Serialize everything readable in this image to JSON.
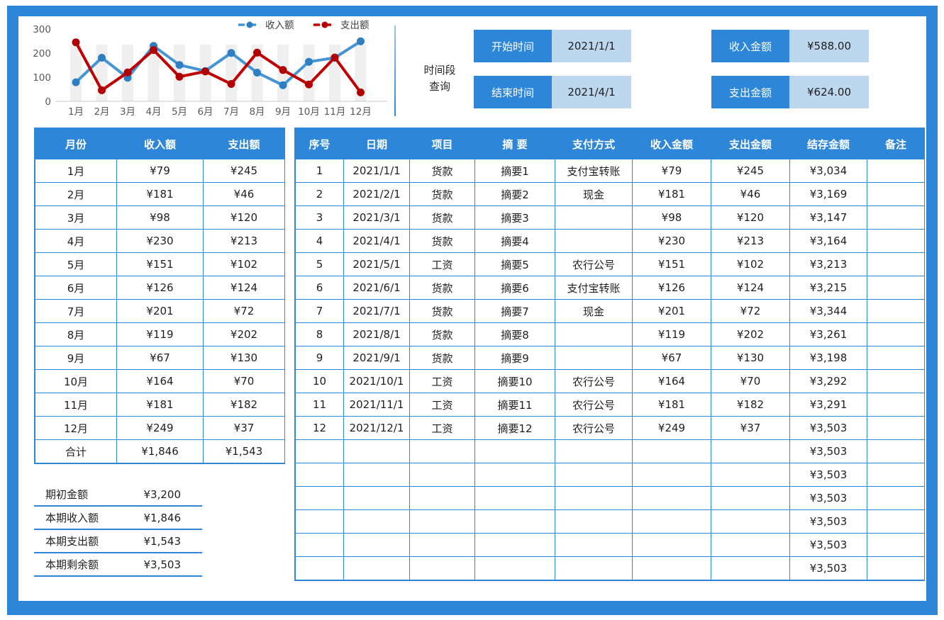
{
  "colors": {
    "accent_blue": "#2e86d9",
    "light_blue": "#bdd7ee",
    "income_line": "#4495d5",
    "expense_line": "#c00000",
    "stripe_gray": "#efefef",
    "axis_text": "#595959"
  },
  "chart_data": {
    "type": "line",
    "categories": [
      "1月",
      "2月",
      "3月",
      "4月",
      "5月",
      "6月",
      "7月",
      "8月",
      "9月",
      "10月",
      "11月",
      "12月"
    ],
    "series": [
      {
        "name": "收入额",
        "color": "#4495d5",
        "marker_color": "#2e7fc2",
        "values": [
          79,
          181,
          98,
          230,
          151,
          126,
          201,
          119,
          67,
          164,
          181,
          249
        ]
      },
      {
        "name": "支出额",
        "color": "#c00000",
        "marker_color": "#b00000",
        "values": [
          245,
          46,
          120,
          213,
          102,
          124,
          72,
          202,
          130,
          70,
          182,
          37
        ]
      }
    ],
    "ylim": [
      0,
      300
    ],
    "yticks": [
      0,
      100,
      200,
      300
    ],
    "grid": false,
    "legend_position": "top-right",
    "background_stripes": true
  },
  "query": {
    "caption_line1": "时间段",
    "caption_line2": "查询",
    "fields": [
      {
        "label": "开始时间",
        "value": "2021/1/1"
      },
      {
        "label": "结束时间",
        "value": "2021/4/1"
      },
      {
        "label": "收入金额",
        "value": "¥588.00"
      },
      {
        "label": "支出金额",
        "value": "¥624.00"
      }
    ]
  },
  "monthly_table": {
    "headers": [
      "月份",
      "收入额",
      "支出额"
    ],
    "rows": [
      [
        "1月",
        "¥79",
        "¥245"
      ],
      [
        "2月",
        "¥181",
        "¥46"
      ],
      [
        "3月",
        "¥98",
        "¥120"
      ],
      [
        "4月",
        "¥230",
        "¥213"
      ],
      [
        "5月",
        "¥151",
        "¥102"
      ],
      [
        "6月",
        "¥126",
        "¥124"
      ],
      [
        "7月",
        "¥201",
        "¥72"
      ],
      [
        "8月",
        "¥119",
        "¥202"
      ],
      [
        "9月",
        "¥67",
        "¥130"
      ],
      [
        "10月",
        "¥164",
        "¥70"
      ],
      [
        "11月",
        "¥181",
        "¥182"
      ],
      [
        "12月",
        "¥249",
        "¥37"
      ],
      [
        "合计",
        "¥1,846",
        "¥1,543"
      ]
    ]
  },
  "ledger_table": {
    "headers": [
      "序号",
      "日期",
      "项目",
      "摘  要",
      "支付方式",
      "收入金额",
      "支出金额",
      "结存金额",
      "备注"
    ],
    "rows": [
      [
        "1",
        "2021/1/1",
        "货款",
        "摘要1",
        "支付宝转账",
        "¥79",
        "¥245",
        "¥3,034",
        ""
      ],
      [
        "2",
        "2021/2/1",
        "货款",
        "摘要2",
        "现金",
        "¥181",
        "¥46",
        "¥3,169",
        ""
      ],
      [
        "3",
        "2021/3/1",
        "货款",
        "摘要3",
        "",
        "¥98",
        "¥120",
        "¥3,147",
        ""
      ],
      [
        "4",
        "2021/4/1",
        "货款",
        "摘要4",
        "",
        "¥230",
        "¥213",
        "¥3,164",
        ""
      ],
      [
        "5",
        "2021/5/1",
        "工资",
        "摘要5",
        "农行公号",
        "¥151",
        "¥102",
        "¥3,213",
        ""
      ],
      [
        "6",
        "2021/6/1",
        "货款",
        "摘要6",
        "支付宝转账",
        "¥126",
        "¥124",
        "¥3,215",
        ""
      ],
      [
        "7",
        "2021/7/1",
        "货款",
        "摘要7",
        "现金",
        "¥201",
        "¥72",
        "¥3,344",
        ""
      ],
      [
        "8",
        "2021/8/1",
        "货款",
        "摘要8",
        "",
        "¥119",
        "¥202",
        "¥3,261",
        ""
      ],
      [
        "9",
        "2021/9/1",
        "货款",
        "摘要9",
        "",
        "¥67",
        "¥130",
        "¥3,198",
        ""
      ],
      [
        "10",
        "2021/10/1",
        "工资",
        "摘要10",
        "农行公号",
        "¥164",
        "¥70",
        "¥3,292",
        ""
      ],
      [
        "11",
        "2021/11/1",
        "工资",
        "摘要11",
        "农行公号",
        "¥181",
        "¥182",
        "¥3,291",
        ""
      ],
      [
        "12",
        "2021/12/1",
        "工资",
        "摘要12",
        "农行公号",
        "¥249",
        "¥37",
        "¥3,503",
        ""
      ],
      [
        "",
        "",
        "",
        "",
        "",
        "",
        "",
        "¥3,503",
        ""
      ],
      [
        "",
        "",
        "",
        "",
        "",
        "",
        "",
        "¥3,503",
        ""
      ],
      [
        "",
        "",
        "",
        "",
        "",
        "",
        "",
        "¥3,503",
        ""
      ],
      [
        "",
        "",
        "",
        "",
        "",
        "",
        "",
        "¥3,503",
        ""
      ],
      [
        "",
        "",
        "",
        "",
        "",
        "",
        "",
        "¥3,503",
        ""
      ],
      [
        "",
        "",
        "",
        "",
        "",
        "",
        "",
        "¥3,503",
        ""
      ]
    ]
  },
  "summary": {
    "rows": [
      {
        "label": "期初金额",
        "value": "¥3,200"
      },
      {
        "label": "本期收入额",
        "value": "¥1,846"
      },
      {
        "label": "本期支出额",
        "value": "¥1,543"
      },
      {
        "label": "本期剩余额",
        "value": "¥3,503"
      }
    ]
  }
}
